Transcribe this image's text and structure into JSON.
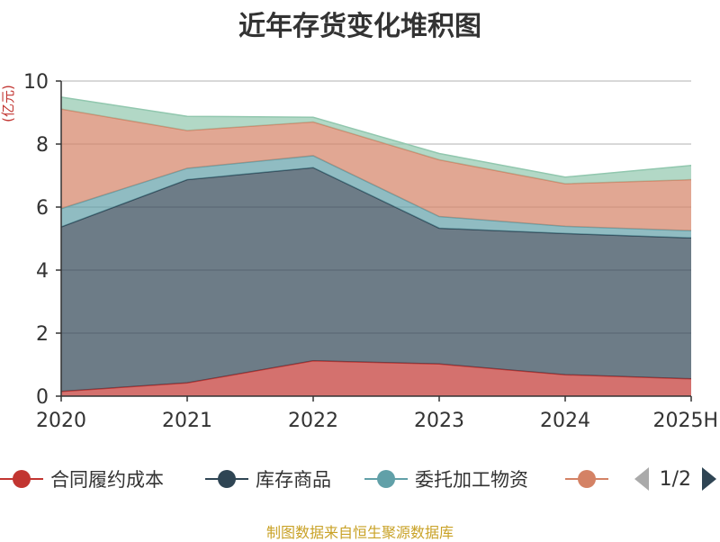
{
  "title": "近年存货变化堆积图",
  "unit_label": "(亿元)",
  "source_note": "制图数据来自恒生聚源数据库",
  "pager": {
    "text": "1/2"
  },
  "legend": [
    {
      "label": "合同履约成本",
      "color": "#c23531"
    },
    {
      "label": "库存商品",
      "color": "#2f4554"
    },
    {
      "label": "委托加工物资",
      "color": "#61a0a8"
    },
    {
      "label": "",
      "color": "#d48265"
    }
  ],
  "chart_data": {
    "type": "area",
    "stacked": true,
    "title": "近年存货变化堆积图",
    "ylabel": "(亿元)",
    "categories": [
      "2020",
      "2021",
      "2022",
      "2023",
      "2024",
      "2025H"
    ],
    "ylim": [
      0,
      10
    ],
    "yticks": [
      0,
      2,
      4,
      6,
      8,
      10
    ],
    "grid": true,
    "legend_position": "bottom",
    "series": [
      {
        "name": "合同履约成本",
        "color": "#c23531",
        "values": [
          0.15,
          0.42,
          1.12,
          1.02,
          0.68,
          0.55
        ]
      },
      {
        "name": "库存商品",
        "color": "#2f4554",
        "values": [
          5.22,
          6.45,
          6.13,
          4.31,
          4.48,
          4.47
        ]
      },
      {
        "name": "委托加工物资",
        "color": "#61a0a8",
        "values": [
          0.58,
          0.36,
          0.38,
          0.37,
          0.23,
          0.23
        ]
      },
      {
        "color": "#d48265",
        "values": [
          3.16,
          1.2,
          1.07,
          1.8,
          1.35,
          1.62
        ]
      },
      {
        "color": "#91c7ae",
        "values": [
          0.38,
          0.45,
          0.15,
          0.2,
          0.21,
          0.45
        ]
      }
    ]
  }
}
